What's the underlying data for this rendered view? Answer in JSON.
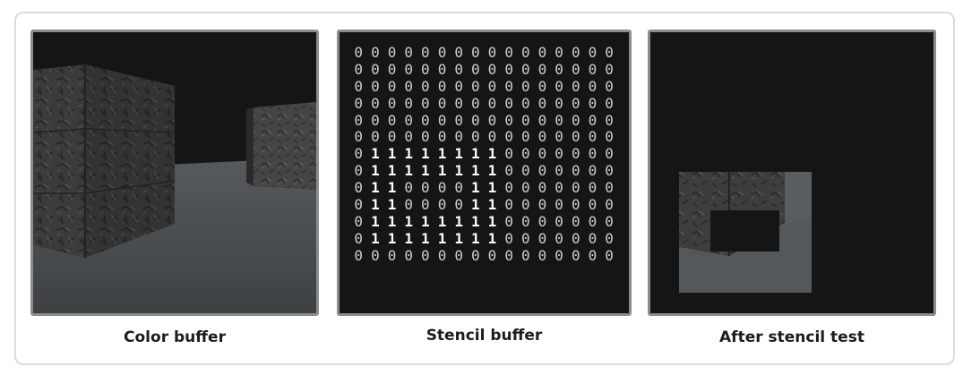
{
  "captions": {
    "color": "Color buffer",
    "stencil": "Stencil buffer",
    "after": "After stencil test"
  },
  "stencil_grid": [
    "0000000000000000",
    "0000000000000000",
    "0000000000000000",
    "0000000000000000",
    "0000000000000000",
    "0000000000000000",
    "0111111110000000",
    "0111111110000000",
    "0110000110000000",
    "0110000110000000",
    "0111111110000000",
    "0111111110000000",
    "0000000000000000"
  ],
  "colors": {
    "panel_border": "#8c8c8c",
    "background_dark": "#151515",
    "floor": "#4a4d50",
    "crate": "#3a3a3a"
  }
}
